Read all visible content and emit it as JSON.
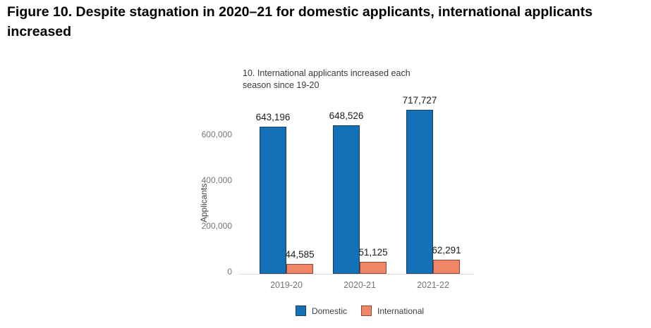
{
  "figure": {
    "title": "Figure 10. Despite stagnation in 2020–21 for domestic applicants, international applicants increased"
  },
  "chart_data": {
    "type": "bar",
    "title": "10. International applicants increased each season since 19-20",
    "categories": [
      "2019-20",
      "2020-21",
      "2021-22"
    ],
    "series": [
      {
        "name": "Domestic",
        "values": [
          643196,
          648526,
          717727
        ],
        "labels": [
          "643,196",
          "648,526",
          "717,727"
        ],
        "color": "#1371b7",
        "border_color": "#1f3f5f"
      },
      {
        "name": "International",
        "values": [
          44585,
          51125,
          62291
        ],
        "labels": [
          "44,585",
          "51,125",
          "62,291"
        ],
        "color": "#f08567",
        "border_color": "#8a4636"
      }
    ],
    "xlabel": "",
    "ylabel": "Applicants",
    "y_ticks": [
      0,
      200000,
      400000,
      600000
    ],
    "y_tick_labels": [
      "0",
      "200,000",
      "400,000",
      "600,000"
    ],
    "ylim": [
      0,
      800000
    ],
    "grid": false,
    "legend_position": "bottom"
  }
}
